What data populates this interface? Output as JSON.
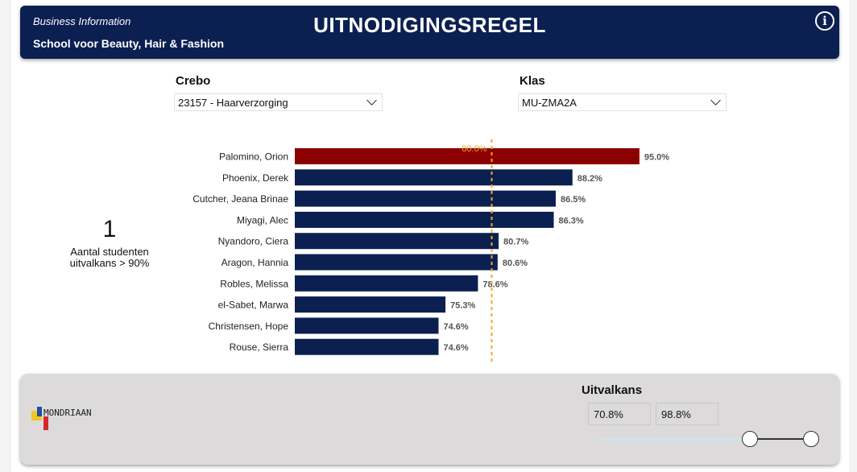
{
  "header": {
    "subtitle": "Business Information",
    "school": "School voor Beauty, Hair & Fashion",
    "title": "UITNODIGINGSREGEL",
    "info_icon": "info-icon",
    "info_glyph": "i"
  },
  "filters": {
    "crebo": {
      "label": "Crebo",
      "value": "23157 - Haarverzorging"
    },
    "klas": {
      "label": "Klas",
      "value": "MU-ZMA2A"
    }
  },
  "kpi": {
    "value": "1",
    "label": "Aantal studenten uitvalkans > 90%"
  },
  "chart_data": {
    "type": "bar",
    "orientation": "horizontal",
    "categories": [
      "Palomino, Orion",
      "Phoenix, Derek",
      "Cutcher, Jeana Brinae",
      "Miyagi, Alec",
      "Nyandoro, Ciera",
      "Aragon, Hannia",
      "Robles, Melissa",
      "el-Sabet, Marwa",
      "Christensen, Hope",
      "Rouse, Sierra"
    ],
    "values": [
      95.0,
      88.2,
      86.5,
      86.3,
      80.7,
      80.6,
      78.6,
      75.3,
      74.6,
      74.6
    ],
    "value_labels": [
      "95.0%",
      "88.2%",
      "86.5%",
      "86.3%",
      "80.7%",
      "80.6%",
      "78.6%",
      "75.3%",
      "74.6%",
      "74.6%"
    ],
    "xlim": [
      60,
      100
    ],
    "reference_line": {
      "value": 80.0,
      "label": "80.0%",
      "color": "#f5a623"
    },
    "highlight_color": "#8b0000",
    "bar_color": "#0b2051"
  },
  "footer": {
    "logo_text": "MONDRIAAN",
    "slider": {
      "title": "Uitvalkans",
      "min_label": "70.8%",
      "max_label": "98.8%"
    }
  }
}
